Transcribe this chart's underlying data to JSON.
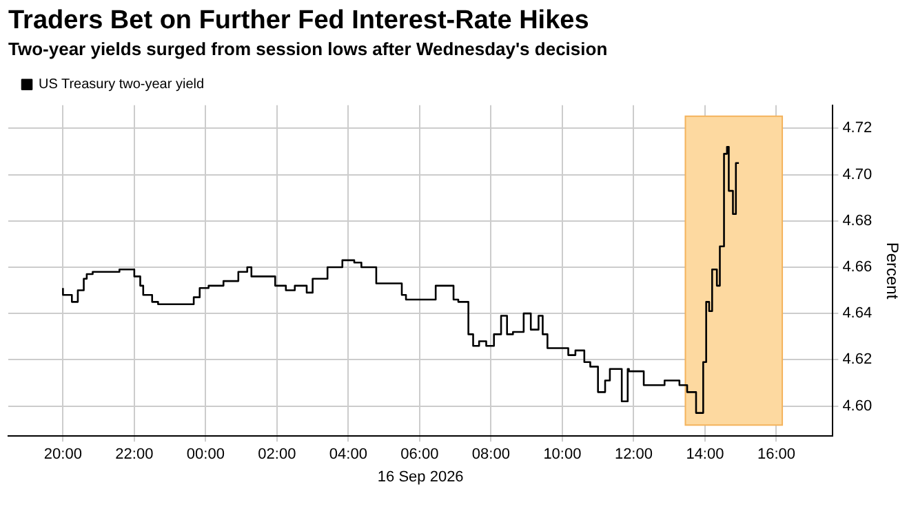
{
  "chart_data": {
    "type": "step",
    "title": "Traders Bet on Further Fed Interest-Rate Hikes",
    "subtitle": "Two-year yields surged from session lows after Wednesday's decision",
    "xlabel": "16 Sep 2026",
    "ylabel": "Percent",
    "x": [
      "2026-09-15T20:00",
      "2026-09-15T20:15",
      "2026-09-15T20:25",
      "2026-09-15T20:35",
      "2026-09-15T20:40",
      "2026-09-15T20:50",
      "2026-09-15T21:10",
      "2026-09-15T21:35",
      "2026-09-15T22:00",
      "2026-09-15T22:10",
      "2026-09-15T22:15",
      "2026-09-15T22:30",
      "2026-09-15T22:40",
      "2026-09-15T23:02",
      "2026-09-15T23:40",
      "2026-09-15T23:50",
      "2026-09-16T00:05",
      "2026-09-16T00:30",
      "2026-09-16T00:55",
      "2026-09-16T01:10",
      "2026-09-16T01:17",
      "2026-09-16T01:30",
      "2026-09-16T01:57",
      "2026-09-16T02:15",
      "2026-09-16T02:30",
      "2026-09-16T02:50",
      "2026-09-16T03:00",
      "2026-09-16T03:25",
      "2026-09-16T03:50",
      "2026-09-16T04:10",
      "2026-09-16T04:22",
      "2026-09-16T04:47",
      "2026-09-16T05:00",
      "2026-09-16T05:30",
      "2026-09-16T05:37",
      "2026-09-16T06:00",
      "2026-09-16T06:27",
      "2026-09-16T06:40",
      "2026-09-16T06:57",
      "2026-09-16T07:05",
      "2026-09-16T07:22",
      "2026-09-16T07:30",
      "2026-09-16T07:40",
      "2026-09-16T07:52",
      "2026-09-16T08:05",
      "2026-09-16T08:17",
      "2026-09-16T08:27",
      "2026-09-16T08:37",
      "2026-09-16T08:55",
      "2026-09-16T09:07",
      "2026-09-16T09:20",
      "2026-09-16T09:27",
      "2026-09-16T09:35",
      "2026-09-16T09:47",
      "2026-09-16T10:10",
      "2026-09-16T10:22",
      "2026-09-16T10:37",
      "2026-09-16T10:47",
      "2026-09-16T11:00",
      "2026-09-16T11:12",
      "2026-09-16T11:20",
      "2026-09-16T11:27",
      "2026-09-16T11:40",
      "2026-09-16T11:50",
      "2026-09-16T11:52",
      "2026-09-16T12:17",
      "2026-09-16T12:52",
      "2026-09-16T13:17",
      "2026-09-16T13:30",
      "2026-09-16T13:45",
      "2026-09-16T13:57",
      "2026-09-16T14:02",
      "2026-09-16T14:07",
      "2026-09-16T14:12",
      "2026-09-16T14:20",
      "2026-09-16T14:25",
      "2026-09-16T14:32",
      "2026-09-16T14:37",
      "2026-09-16T14:40",
      "2026-09-16T14:47",
      "2026-09-16T14:52",
      "2026-09-16T14:57"
    ],
    "series": [
      {
        "name": "US Treasury two-year yield",
        "color": "#000000",
        "values": [
          4.651,
          4.648,
          4.645,
          4.65,
          4.655,
          4.657,
          4.658,
          4.658,
          4.659,
          4.656,
          4.652,
          4.648,
          4.645,
          4.644,
          4.644,
          4.647,
          4.651,
          4.652,
          4.654,
          4.658,
          4.66,
          4.656,
          4.656,
          4.652,
          4.65,
          4.652,
          4.649,
          4.655,
          4.66,
          4.663,
          4.662,
          4.66,
          4.653,
          4.653,
          4.648,
          4.646,
          4.646,
          4.652,
          4.652,
          4.646,
          4.645,
          4.631,
          4.626,
          4.628,
          4.626,
          4.631,
          4.639,
          4.631,
          4.632,
          4.64,
          4.633,
          4.639,
          4.631,
          4.625,
          4.625,
          4.622,
          4.624,
          4.619,
          4.617,
          4.606,
          4.611,
          4.616,
          4.616,
          4.602,
          4.616,
          4.615,
          4.609,
          4.611,
          4.609,
          4.606,
          4.597,
          4.619,
          4.645,
          4.641,
          4.659,
          4.652,
          4.669,
          4.709,
          4.712,
          4.693,
          4.683,
          4.705
        ]
      }
    ],
    "xlim": [
      "2026-09-15T18:28",
      "2026-09-16T17:35"
    ],
    "xticks": [
      {
        "value": "2026-09-15T20:00",
        "label": "20:00"
      },
      {
        "value": "2026-09-15T22:00",
        "label": "22:00"
      },
      {
        "value": "2026-09-16T00:00",
        "label": "00:00"
      },
      {
        "value": "2026-09-16T02:00",
        "label": "02:00"
      },
      {
        "value": "2026-09-16T04:00",
        "label": "04:00"
      },
      {
        "value": "2026-09-16T06:00",
        "label": "06:00"
      },
      {
        "value": "2026-09-16T08:00",
        "label": "08:00"
      },
      {
        "value": "2026-09-16T10:00",
        "label": "10:00"
      },
      {
        "value": "2026-09-16T12:00",
        "label": "12:00"
      },
      {
        "value": "2026-09-16T14:00",
        "label": "14:00"
      },
      {
        "value": "2026-09-16T16:00",
        "label": "16:00"
      }
    ],
    "ylim": [
      4.587,
      4.73
    ],
    "yticks": [
      {
        "value": 4.6,
        "label": "4.60"
      },
      {
        "value": 4.62,
        "label": "4.62"
      },
      {
        "value": 4.64,
        "label": "4.64"
      },
      {
        "value": 4.66,
        "label": "4.66"
      },
      {
        "value": 4.68,
        "label": "4.68"
      },
      {
        "value": 4.7,
        "label": "4.70"
      },
      {
        "value": 4.72,
        "label": "4.72"
      }
    ],
    "bands": [
      {
        "axis": "x",
        "from": "2026-09-16T13:27",
        "to": "2026-09-16T16:10",
        "color": "#fdd9a0"
      }
    ],
    "grid": true,
    "legend": "top left",
    "marker": "none",
    "line_style": "solid"
  }
}
